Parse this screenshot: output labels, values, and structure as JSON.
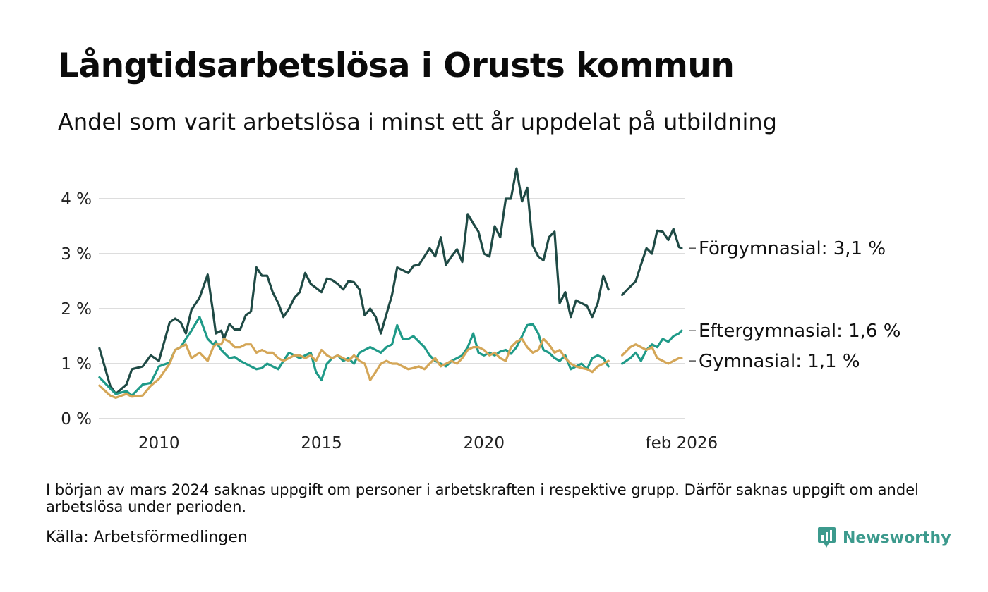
{
  "header": {
    "title": "Långtidsarbetslösa i Orusts kommun",
    "subtitle": "Andel som varit arbetslösa i minst ett år uppdelat på utbildning"
  },
  "footer": {
    "note": "I början av mars 2024 saknas uppgift om personer i arbetskraften i respektive grupp. Därför saknas uppgift om andel arbetslösa under perioden.",
    "source": "Källa: Arbetsförmedlingen",
    "brand": "Newsworthy"
  },
  "colors": {
    "forgymnasial": "#1f4a45",
    "eftergymnasial": "#1f9a88",
    "gymnasial": "#d4a657",
    "grid": "#dddddd",
    "brand": "#3c9a8d"
  },
  "chart_data": {
    "type": "line",
    "title": "Långtidsarbetslösa i Orusts kommun",
    "xlabel": "",
    "ylabel": "",
    "ylim": [
      0,
      4.6
    ],
    "xlim": [
      2008.15,
      2026.17
    ],
    "grid": true,
    "y_ticks": [
      {
        "value": 0,
        "label": "0 %"
      },
      {
        "value": 1,
        "label": "1 %"
      },
      {
        "value": 2,
        "label": "2 %"
      },
      {
        "value": 3,
        "label": "3 %"
      },
      {
        "value": 4,
        "label": "4 %"
      }
    ],
    "x_ticks": [
      {
        "value": 2010.0,
        "label": "2010"
      },
      {
        "value": 2015.0,
        "label": "2015"
      },
      {
        "value": 2020.0,
        "label": "2020"
      },
      {
        "value": 2026.08,
        "label": "feb 2026"
      }
    ],
    "gap": [
      2024.0,
      2024.25
    ],
    "series": [
      {
        "name": "Förgymnasial",
        "end_label": "Förgymnasial: 3,1 %",
        "color": "#1f4a45",
        "x": [
          2008.17,
          2008.5,
          2008.67,
          2009.0,
          2009.17,
          2009.5,
          2009.75,
          2010.0,
          2010.33,
          2010.5,
          2010.67,
          2010.83,
          2011.0,
          2011.25,
          2011.5,
          2011.67,
          2011.75,
          2011.92,
          2012.0,
          2012.17,
          2012.33,
          2012.5,
          2012.67,
          2012.83,
          2013.0,
          2013.17,
          2013.33,
          2013.5,
          2013.67,
          2013.83,
          2014.0,
          2014.17,
          2014.33,
          2014.5,
          2014.67,
          2014.83,
          2015.0,
          2015.17,
          2015.33,
          2015.5,
          2015.67,
          2015.83,
          2016.0,
          2016.17,
          2016.33,
          2016.5,
          2016.67,
          2016.83,
          2017.0,
          2017.17,
          2017.33,
          2017.5,
          2017.67,
          2017.83,
          2018.0,
          2018.17,
          2018.33,
          2018.5,
          2018.67,
          2018.83,
          2019.0,
          2019.17,
          2019.33,
          2019.5,
          2019.67,
          2019.83,
          2020.0,
          2020.17,
          2020.33,
          2020.5,
          2020.67,
          2020.83,
          2021.0,
          2021.17,
          2021.33,
          2021.5,
          2021.67,
          2021.83,
          2022.0,
          2022.17,
          2022.33,
          2022.5,
          2022.67,
          2022.83,
          2023.0,
          2023.17,
          2023.33,
          2023.5,
          2023.67,
          2023.83,
          2024.25,
          2024.5,
          2024.67,
          2024.83,
          2025.0,
          2025.17,
          2025.33,
          2025.5,
          2025.67,
          2025.83,
          2026.0,
          2026.08
        ],
        "values": [
          1.28,
          0.6,
          0.45,
          0.62,
          0.9,
          0.95,
          1.15,
          1.05,
          1.75,
          1.82,
          1.75,
          1.55,
          1.98,
          2.2,
          2.62,
          1.92,
          1.55,
          1.6,
          1.45,
          1.72,
          1.62,
          1.62,
          1.88,
          1.95,
          2.75,
          2.6,
          2.6,
          2.3,
          2.1,
          1.85,
          2.0,
          2.2,
          2.3,
          2.65,
          2.45,
          2.38,
          2.3,
          2.55,
          2.52,
          2.45,
          2.35,
          2.5,
          2.48,
          2.35,
          1.88,
          2.0,
          1.85,
          1.55,
          1.9,
          2.25,
          2.75,
          2.7,
          2.65,
          2.78,
          2.8,
          2.95,
          3.1,
          2.95,
          3.3,
          2.8,
          2.95,
          3.08,
          2.85,
          3.72,
          3.55,
          3.4,
          3.0,
          2.95,
          3.5,
          3.3,
          4.0,
          4.0,
          4.55,
          3.95,
          4.2,
          3.15,
          2.95,
          2.88,
          3.3,
          3.4,
          2.1,
          2.3,
          1.85,
          2.15,
          2.1,
          2.05,
          1.85,
          2.1,
          2.6,
          2.35,
          2.25,
          2.4,
          2.5,
          2.8,
          3.1,
          3.0,
          3.42,
          3.4,
          3.25,
          3.45,
          3.12,
          3.1
        ]
      },
      {
        "name": "Eftergymnasial",
        "end_label": "Eftergymnasial: 1,6 %",
        "color": "#1f9a88",
        "x": [
          2008.17,
          2008.5,
          2008.67,
          2009.0,
          2009.17,
          2009.5,
          2009.75,
          2010.0,
          2010.33,
          2010.5,
          2010.67,
          2010.83,
          2011.0,
          2011.25,
          2011.5,
          2011.67,
          2011.75,
          2011.92,
          2012.0,
          2012.17,
          2012.33,
          2012.5,
          2012.67,
          2012.83,
          2013.0,
          2013.17,
          2013.33,
          2013.5,
          2013.67,
          2013.83,
          2014.0,
          2014.17,
          2014.33,
          2014.5,
          2014.67,
          2014.83,
          2015.0,
          2015.17,
          2015.33,
          2015.5,
          2015.67,
          2015.83,
          2016.0,
          2016.17,
          2016.33,
          2016.5,
          2016.67,
          2016.83,
          2017.0,
          2017.17,
          2017.33,
          2017.5,
          2017.67,
          2017.83,
          2018.0,
          2018.17,
          2018.33,
          2018.5,
          2018.67,
          2018.83,
          2019.0,
          2019.17,
          2019.33,
          2019.5,
          2019.67,
          2019.83,
          2020.0,
          2020.17,
          2020.33,
          2020.5,
          2020.67,
          2020.83,
          2021.0,
          2021.17,
          2021.33,
          2021.5,
          2021.67,
          2021.83,
          2022.0,
          2022.17,
          2022.33,
          2022.5,
          2022.67,
          2022.83,
          2023.0,
          2023.17,
          2023.33,
          2023.5,
          2023.67,
          2023.83,
          2024.25,
          2024.5,
          2024.67,
          2024.83,
          2025.0,
          2025.17,
          2025.33,
          2025.5,
          2025.67,
          2025.83,
          2026.0,
          2026.08
        ],
        "values": [
          0.75,
          0.55,
          0.45,
          0.5,
          0.42,
          0.62,
          0.65,
          0.95,
          1.02,
          1.25,
          1.3,
          1.45,
          1.6,
          1.85,
          1.45,
          1.35,
          1.4,
          1.25,
          1.2,
          1.1,
          1.12,
          1.05,
          1.0,
          0.95,
          0.9,
          0.92,
          1.0,
          0.95,
          0.9,
          1.05,
          1.2,
          1.15,
          1.1,
          1.15,
          1.2,
          0.85,
          0.7,
          1.0,
          1.1,
          1.15,
          1.05,
          1.1,
          1.0,
          1.2,
          1.25,
          1.3,
          1.25,
          1.2,
          1.3,
          1.35,
          1.7,
          1.45,
          1.45,
          1.5,
          1.4,
          1.3,
          1.15,
          1.05,
          1.0,
          0.95,
          1.05,
          1.1,
          1.15,
          1.3,
          1.55,
          1.2,
          1.15,
          1.2,
          1.15,
          1.22,
          1.25,
          1.18,
          1.3,
          1.5,
          1.7,
          1.72,
          1.55,
          1.25,
          1.2,
          1.1,
          1.05,
          1.15,
          0.9,
          0.95,
          1.0,
          0.9,
          1.1,
          1.15,
          1.1,
          0.95,
          1.0,
          1.1,
          1.2,
          1.05,
          1.25,
          1.35,
          1.3,
          1.45,
          1.4,
          1.5,
          1.55,
          1.6
        ]
      },
      {
        "name": "Gymnasial",
        "end_label": "Gymnasial: 1,1 %",
        "color": "#d4a657",
        "x": [
          2008.17,
          2008.5,
          2008.67,
          2009.0,
          2009.17,
          2009.5,
          2009.75,
          2010.0,
          2010.33,
          2010.5,
          2010.67,
          2010.83,
          2011.0,
          2011.25,
          2011.5,
          2011.67,
          2011.75,
          2011.92,
          2012.0,
          2012.17,
          2012.33,
          2012.5,
          2012.67,
          2012.83,
          2013.0,
          2013.17,
          2013.33,
          2013.5,
          2013.67,
          2013.83,
          2014.0,
          2014.17,
          2014.33,
          2014.5,
          2014.67,
          2014.83,
          2015.0,
          2015.17,
          2015.33,
          2015.5,
          2015.67,
          2015.83,
          2016.0,
          2016.17,
          2016.33,
          2016.5,
          2016.67,
          2016.83,
          2017.0,
          2017.17,
          2017.33,
          2017.5,
          2017.67,
          2017.83,
          2018.0,
          2018.17,
          2018.33,
          2018.5,
          2018.67,
          2018.83,
          2019.0,
          2019.17,
          2019.33,
          2019.5,
          2019.67,
          2019.83,
          2020.0,
          2020.17,
          2020.33,
          2020.5,
          2020.67,
          2020.83,
          2021.0,
          2021.17,
          2021.33,
          2021.5,
          2021.67,
          2021.83,
          2022.0,
          2022.17,
          2022.33,
          2022.5,
          2022.67,
          2022.83,
          2023.0,
          2023.17,
          2023.33,
          2023.5,
          2023.67,
          2023.83,
          2024.25,
          2024.5,
          2024.67,
          2024.83,
          2025.0,
          2025.17,
          2025.33,
          2025.5,
          2025.67,
          2025.83,
          2026.0,
          2026.08
        ],
        "values": [
          0.6,
          0.42,
          0.38,
          0.45,
          0.4,
          0.42,
          0.6,
          0.72,
          1.0,
          1.25,
          1.3,
          1.35,
          1.1,
          1.2,
          1.05,
          1.3,
          1.35,
          1.35,
          1.45,
          1.4,
          1.3,
          1.3,
          1.35,
          1.35,
          1.2,
          1.25,
          1.2,
          1.2,
          1.1,
          1.05,
          1.1,
          1.15,
          1.15,
          1.1,
          1.15,
          1.05,
          1.25,
          1.15,
          1.1,
          1.15,
          1.1,
          1.05,
          1.15,
          1.05,
          1.0,
          0.7,
          0.85,
          1.0,
          1.05,
          1.0,
          1.0,
          0.95,
          0.9,
          0.92,
          0.95,
          0.9,
          1.0,
          1.1,
          0.95,
          1.0,
          1.05,
          1.0,
          1.1,
          1.25,
          1.3,
          1.3,
          1.25,
          1.15,
          1.2,
          1.1,
          1.05,
          1.3,
          1.4,
          1.45,
          1.3,
          1.2,
          1.25,
          1.45,
          1.35,
          1.2,
          1.25,
          1.1,
          1.0,
          0.95,
          0.92,
          0.9,
          0.85,
          0.95,
          1.0,
          1.05,
          1.15,
          1.3,
          1.35,
          1.3,
          1.25,
          1.3,
          1.1,
          1.05,
          1.0,
          1.05,
          1.1,
          1.1
        ]
      }
    ]
  }
}
